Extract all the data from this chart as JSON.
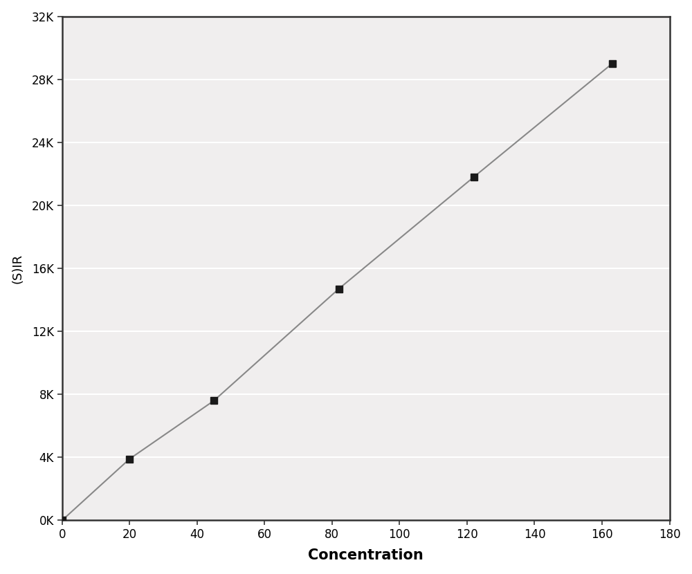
{
  "x_data": [
    0,
    20,
    45,
    82,
    122,
    163
  ],
  "y_data": [
    0,
    3900,
    7600,
    14700,
    21800,
    29000
  ],
  "xlim": [
    0,
    180
  ],
  "ylim": [
    0,
    32000
  ],
  "xticks": [
    0,
    20,
    40,
    60,
    80,
    100,
    120,
    140,
    160,
    180
  ],
  "yticks": [
    0,
    4000,
    8000,
    12000,
    16000,
    20000,
    24000,
    28000,
    32000
  ],
  "ytick_labels": [
    "0K",
    "4K",
    "8K",
    "12K",
    "16K",
    "20K",
    "24K",
    "28K",
    "32K"
  ],
  "xlabel": "Concentration",
  "ylabel": "(S)IR",
  "line_color": "#888888",
  "marker_color": "#1a1a1a",
  "background_color": "#ffffff",
  "plot_bg_color": "#f0eeee",
  "grid_color": "#ffffff",
  "spine_color": "#333333",
  "xlabel_fontsize": 15,
  "ylabel_fontsize": 13,
  "tick_fontsize": 12
}
